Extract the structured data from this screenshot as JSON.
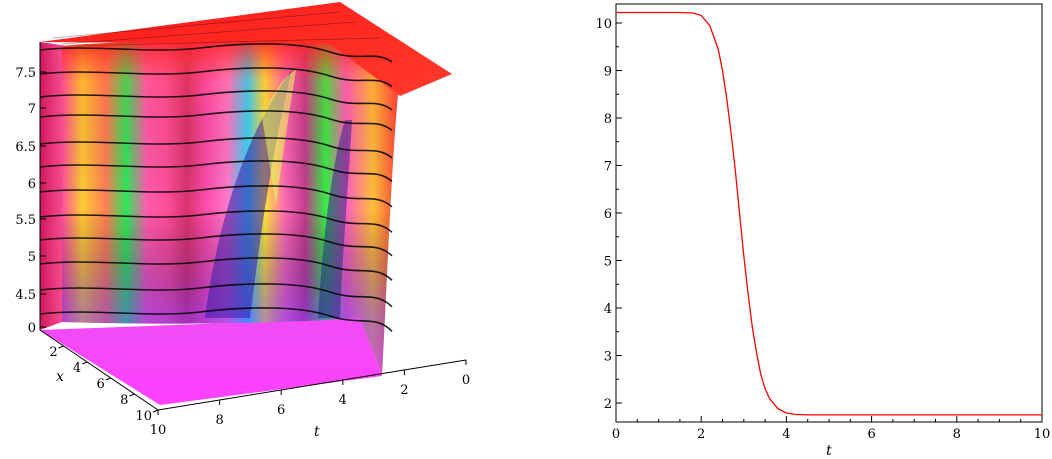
{
  "chart_data": [
    {
      "type": "surface",
      "axes": {
        "z": {
          "ticks": [
            0,
            4.5,
            5,
            5.5,
            6,
            6.5,
            7,
            7.5
          ],
          "tick_labels": [
            "0",
            "4.5",
            "5",
            "5.5",
            "6",
            "6.5",
            "7",
            "7.5"
          ],
          "range": [
            0,
            7.8
          ]
        },
        "x": {
          "label": "x",
          "ticks": [
            2,
            4,
            6,
            8,
            10
          ],
          "tick_labels": [
            "2",
            "4",
            "6",
            "8",
            "10"
          ],
          "range": [
            0,
            10
          ]
        },
        "t": {
          "label": "t",
          "ticks": [
            10,
            8,
            6,
            4,
            2,
            0
          ],
          "tick_labels": [
            "10",
            "8",
            "6",
            "4",
            "2",
            "0"
          ],
          "range": [
            0,
            10
          ]
        }
      },
      "colors": {
        "top": "#ff1e1e",
        "floor": "#ff3dff",
        "mesh": "#000000"
      }
    },
    {
      "type": "line",
      "xlabel": "t",
      "xlim": [
        0,
        10
      ],
      "ylim": [
        1.6,
        10.4
      ],
      "xticks": [
        0,
        2,
        4,
        6,
        8,
        10
      ],
      "xtick_labels": [
        "0",
        "2",
        "4",
        "6",
        "8",
        "10"
      ],
      "yticks": [
        2,
        3,
        4,
        5,
        6,
        7,
        8,
        9,
        10
      ],
      "ytick_labels": [
        "2",
        "3",
        "4",
        "5",
        "6",
        "7",
        "8",
        "9",
        "10"
      ],
      "grid": false,
      "series": [
        {
          "color": "#ff0000",
          "x": [
            0,
            1,
            1.5,
            1.8,
            2.0,
            2.2,
            2.4,
            2.5,
            2.6,
            2.7,
            2.8,
            2.9,
            3.0,
            3.1,
            3.2,
            3.3,
            3.4,
            3.5,
            3.6,
            3.8,
            4.0,
            4.2,
            4.5,
            5,
            6,
            7,
            8,
            9,
            10
          ],
          "y": [
            10.22,
            10.22,
            10.22,
            10.21,
            10.16,
            9.95,
            9.45,
            9.0,
            8.4,
            7.7,
            6.9,
            6.0,
            5.1,
            4.3,
            3.6,
            3.05,
            2.6,
            2.3,
            2.1,
            1.88,
            1.79,
            1.76,
            1.75,
            1.75,
            1.75,
            1.75,
            1.75,
            1.75,
            1.75
          ]
        }
      ]
    }
  ]
}
